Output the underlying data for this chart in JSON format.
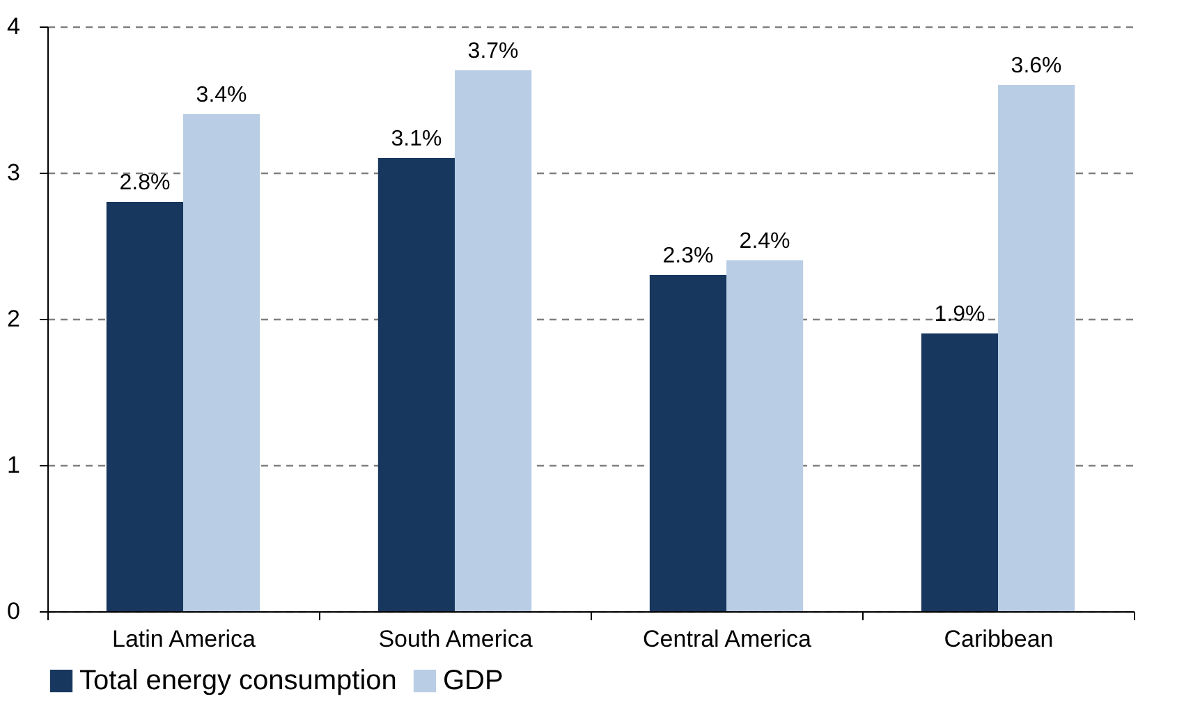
{
  "chart_data": {
    "type": "bar",
    "categories": [
      "Latin America",
      "South America",
      "Central America",
      "Caribbean"
    ],
    "series": [
      {
        "name": "Total energy consumption",
        "color": "#17375e",
        "values": [
          2.8,
          3.1,
          2.3,
          1.9
        ],
        "value_labels": [
          "2.8%",
          "3.1%",
          "2.3%",
          "1.9%"
        ]
      },
      {
        "name": "GDP",
        "color": "#b9cde5",
        "values": [
          3.4,
          3.7,
          2.4,
          3.6
        ],
        "value_labels": [
          "3.4%",
          "3.7%",
          "2.4%",
          "3.6%"
        ]
      }
    ],
    "ylim": [
      0,
      4
    ],
    "yticks": [
      0,
      1,
      2,
      3,
      4
    ],
    "grid": "y",
    "legend": "bottom"
  }
}
